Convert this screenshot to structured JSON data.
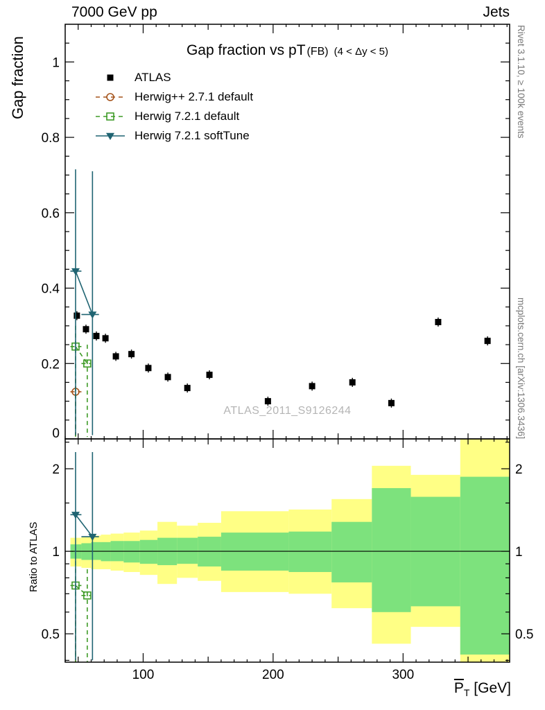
{
  "header": {
    "left": "7000 GeV pp",
    "right": "Jets"
  },
  "side_notes": {
    "right_top": "Rivet 3.1.10, ≥ 100k events",
    "right_bottom": "mcplots.cern.ch [arXiv:1306.3436]"
  },
  "watermark": "ATLAS_2011_S9126244",
  "chart_data": {
    "type": "scatter",
    "title_main": "Gap fraction vs pT",
    "title_tag": "(FB)",
    "title_cut": "(4 < Δy < 5)",
    "ylabel": "Gap fraction",
    "ratio_ylabel": "Ratio to ATLAS",
    "xlabel_base": "P",
    "xlabel_sub": "T",
    "xlabel_unit": " [GeV]",
    "xlim": [
      40,
      382
    ],
    "top_ylim": [
      0,
      1.1
    ],
    "ratio_ylim": [
      0.394,
      2.57
    ],
    "ratio_log": true,
    "colors": {
      "yellow_band": "#ffff85",
      "green_band": "#7de27d"
    },
    "xticks": {
      "major": [
        100,
        200,
        300
      ],
      "labels": [
        "100",
        "200",
        "300"
      ],
      "medium": [
        50,
        150,
        250,
        350
      ],
      "minor_step": 10
    },
    "top_yticks": {
      "major": [
        0,
        0.2,
        0.4,
        0.6,
        0.8,
        1
      ],
      "labels": [
        "0",
        "0.2",
        "0.4",
        "0.6",
        "0.8",
        "1"
      ],
      "minor_step": 0.05
    },
    "ratio_yticks": {
      "major": [
        0.5,
        1,
        2
      ],
      "labels": [
        "0.5",
        "1",
        "2"
      ],
      "minor": [
        0.4,
        0.6,
        0.7,
        0.8,
        0.9,
        1.5,
        2.5
      ]
    },
    "bands": [
      {
        "x1": 44,
        "x2": 52.5,
        "yellow": [
          0.88,
          1.12
        ],
        "green": [
          0.94,
          1.06
        ]
      },
      {
        "x1": 52.5,
        "x2": 60,
        "yellow": [
          0.87,
          1.13
        ],
        "green": [
          0.93,
          1.07
        ]
      },
      {
        "x1": 60,
        "x2": 67.5,
        "yellow": [
          0.86,
          1.14
        ],
        "green": [
          0.93,
          1.08
        ]
      },
      {
        "x1": 67.5,
        "x2": 75,
        "yellow": [
          0.86,
          1.15
        ],
        "green": [
          0.92,
          1.08
        ]
      },
      {
        "x1": 75,
        "x2": 85,
        "yellow": [
          0.85,
          1.16
        ],
        "green": [
          0.92,
          1.09
        ]
      },
      {
        "x1": 85,
        "x2": 97.5,
        "yellow": [
          0.84,
          1.17
        ],
        "green": [
          0.91,
          1.09
        ]
      },
      {
        "x1": 97.5,
        "x2": 111,
        "yellow": [
          0.82,
          1.19
        ],
        "green": [
          0.9,
          1.1
        ]
      },
      {
        "x1": 111,
        "x2": 126,
        "yellow": [
          0.76,
          1.28
        ],
        "green": [
          0.89,
          1.12
        ]
      },
      {
        "x1": 126,
        "x2": 142,
        "yellow": [
          0.8,
          1.24
        ],
        "green": [
          0.9,
          1.12
        ]
      },
      {
        "x1": 142,
        "x2": 160,
        "yellow": [
          0.78,
          1.27
        ],
        "green": [
          0.88,
          1.13
        ]
      },
      {
        "x1": 160,
        "x2": 212,
        "yellow": [
          0.71,
          1.4
        ],
        "green": [
          0.85,
          1.17
        ]
      },
      {
        "x1": 212,
        "x2": 245,
        "yellow": [
          0.7,
          1.42
        ],
        "green": [
          0.84,
          1.18
        ]
      },
      {
        "x1": 245,
        "x2": 276,
        "yellow": [
          0.62,
          1.55
        ],
        "green": [
          0.77,
          1.28
        ]
      },
      {
        "x1": 276,
        "x2": 306,
        "yellow": [
          0.46,
          2.05
        ],
        "green": [
          0.6,
          1.7
        ]
      },
      {
        "x1": 306,
        "x2": 344,
        "yellow": [
          0.53,
          1.9
        ],
        "green": [
          0.63,
          1.58
        ]
      },
      {
        "x1": 344,
        "x2": 382,
        "yellow": [
          0.36,
          2.6
        ],
        "green": [
          0.42,
          1.87
        ]
      }
    ],
    "series": [
      {
        "name": "ATLAS",
        "kind": "data",
        "marker": "square",
        "color": "#000000",
        "line": "none",
        "err": 0.012,
        "msize": 4.5,
        "points": [
          {
            "x": 49,
            "y": 0.327
          },
          {
            "x": 56,
            "y": 0.291
          },
          {
            "x": 64,
            "y": 0.273
          },
          {
            "x": 71,
            "y": 0.267
          },
          {
            "x": 79,
            "y": 0.219
          },
          {
            "x": 91,
            "y": 0.225
          },
          {
            "x": 104,
            "y": 0.188
          },
          {
            "x": 119,
            "y": 0.164
          },
          {
            "x": 134,
            "y": 0.135
          },
          {
            "x": 151,
            "y": 0.17
          },
          {
            "x": 196,
            "y": 0.1
          },
          {
            "x": 230,
            "y": 0.14
          },
          {
            "x": 261,
            "y": 0.15
          },
          {
            "x": 291,
            "y": 0.095
          },
          {
            "x": 327,
            "y": 0.31
          },
          {
            "x": 365,
            "y": 0.26
          }
        ]
      },
      {
        "name": "Herwig++ 2.7.1 default",
        "kind": "model",
        "marker": "circle-open",
        "color": "#a5541c",
        "line": "dashed",
        "msize": 5,
        "points": [
          {
            "x": 48,
            "y": 0.125,
            "lo": 0.005,
            "hi": 0.16,
            "x1": 44,
            "x2": 52.5
          }
        ],
        "ratio": [
          {
            "x": 48,
            "y": 0.382,
            "lo": 0.36,
            "hi": 0.56,
            "x1": 44,
            "x2": 52.5
          }
        ]
      },
      {
        "name": "Herwig 7.2.1 default",
        "kind": "model",
        "marker": "square-open",
        "color": "#3e9b27",
        "line": "dashed",
        "msize": 5,
        "points": [
          {
            "x": 48,
            "y": 0.245,
            "lo": 0.005,
            "hi": 0.3,
            "x1": 44,
            "x2": 52.5
          },
          {
            "x": 57,
            "y": 0.2,
            "lo": 0.005,
            "hi": 0.25,
            "x1": 52.5,
            "x2": 60
          }
        ],
        "ratio": [
          {
            "x": 48,
            "y": 0.75,
            "lo": 0.37,
            "hi": 0.92,
            "x1": 44,
            "x2": 52.5
          },
          {
            "x": 57,
            "y": 0.69,
            "lo": 0.37,
            "hi": 0.86,
            "x1": 52.5,
            "x2": 60
          }
        ]
      },
      {
        "name": "Herwig 7.2.1 softTune",
        "kind": "model",
        "marker": "triangle-down",
        "color": "#1f6472",
        "line": "solid",
        "msize": 6,
        "points": [
          {
            "x": 48,
            "y": 0.445,
            "lo": 0.01,
            "hi": 0.715,
            "x1": 44,
            "x2": 52.5
          },
          {
            "x": 61,
            "y": 0.33,
            "lo": 0.01,
            "hi": 0.71,
            "x1": 52.5,
            "x2": 66
          }
        ],
        "ratio": [
          {
            "x": 48,
            "y": 1.36,
            "lo": 0.4,
            "hi": 2.3,
            "x1": 44,
            "x2": 52.5
          },
          {
            "x": 61,
            "y": 1.13,
            "lo": 0.4,
            "hi": 2.3,
            "x1": 52.5,
            "x2": 66
          }
        ]
      }
    ]
  }
}
